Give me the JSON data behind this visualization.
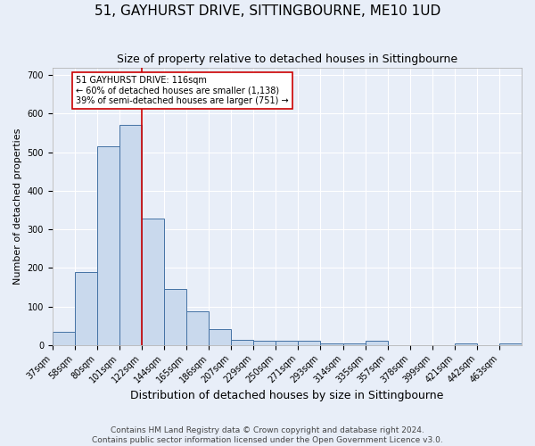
{
  "title": "51, GAYHURST DRIVE, SITTINGBOURNE, ME10 1UD",
  "subtitle": "Size of property relative to detached houses in Sittingbourne",
  "xlabel": "Distribution of detached houses by size in Sittingbourne",
  "ylabel": "Number of detached properties",
  "footnote1": "Contains HM Land Registry data © Crown copyright and database right 2024.",
  "footnote2": "Contains public sector information licensed under the Open Government Licence v3.0.",
  "bin_labels": [
    "37sqm",
    "58sqm",
    "80sqm",
    "101sqm",
    "122sqm",
    "144sqm",
    "165sqm",
    "186sqm",
    "207sqm",
    "229sqm",
    "250sqm",
    "271sqm",
    "293sqm",
    "314sqm",
    "335sqm",
    "357sqm",
    "378sqm",
    "399sqm",
    "421sqm",
    "442sqm",
    "463sqm"
  ],
  "bar_heights": [
    35,
    190,
    515,
    570,
    328,
    145,
    88,
    42,
    14,
    10,
    10,
    10,
    5,
    5,
    10,
    0,
    0,
    0,
    5,
    0,
    5
  ],
  "bar_color": "#c9d9ed",
  "bar_edge_color": "#4472a4",
  "red_line_x": 4,
  "red_line_color": "#cc0000",
  "annotation_text": "51 GAYHURST DRIVE: 116sqm\n← 60% of detached houses are smaller (1,138)\n39% of semi-detached houses are larger (751) →",
  "annotation_box_color": "#ffffff",
  "annotation_box_edge": "#cc0000",
  "ylim": [
    0,
    720
  ],
  "yticks": [
    0,
    100,
    200,
    300,
    400,
    500,
    600,
    700
  ],
  "background_color": "#e8eef8",
  "grid_color": "#ffffff",
  "title_fontsize": 11,
  "subtitle_fontsize": 9,
  "xlabel_fontsize": 9,
  "ylabel_fontsize": 8,
  "tick_fontsize": 7,
  "annotation_fontsize": 7,
  "footnote_fontsize": 6.5
}
